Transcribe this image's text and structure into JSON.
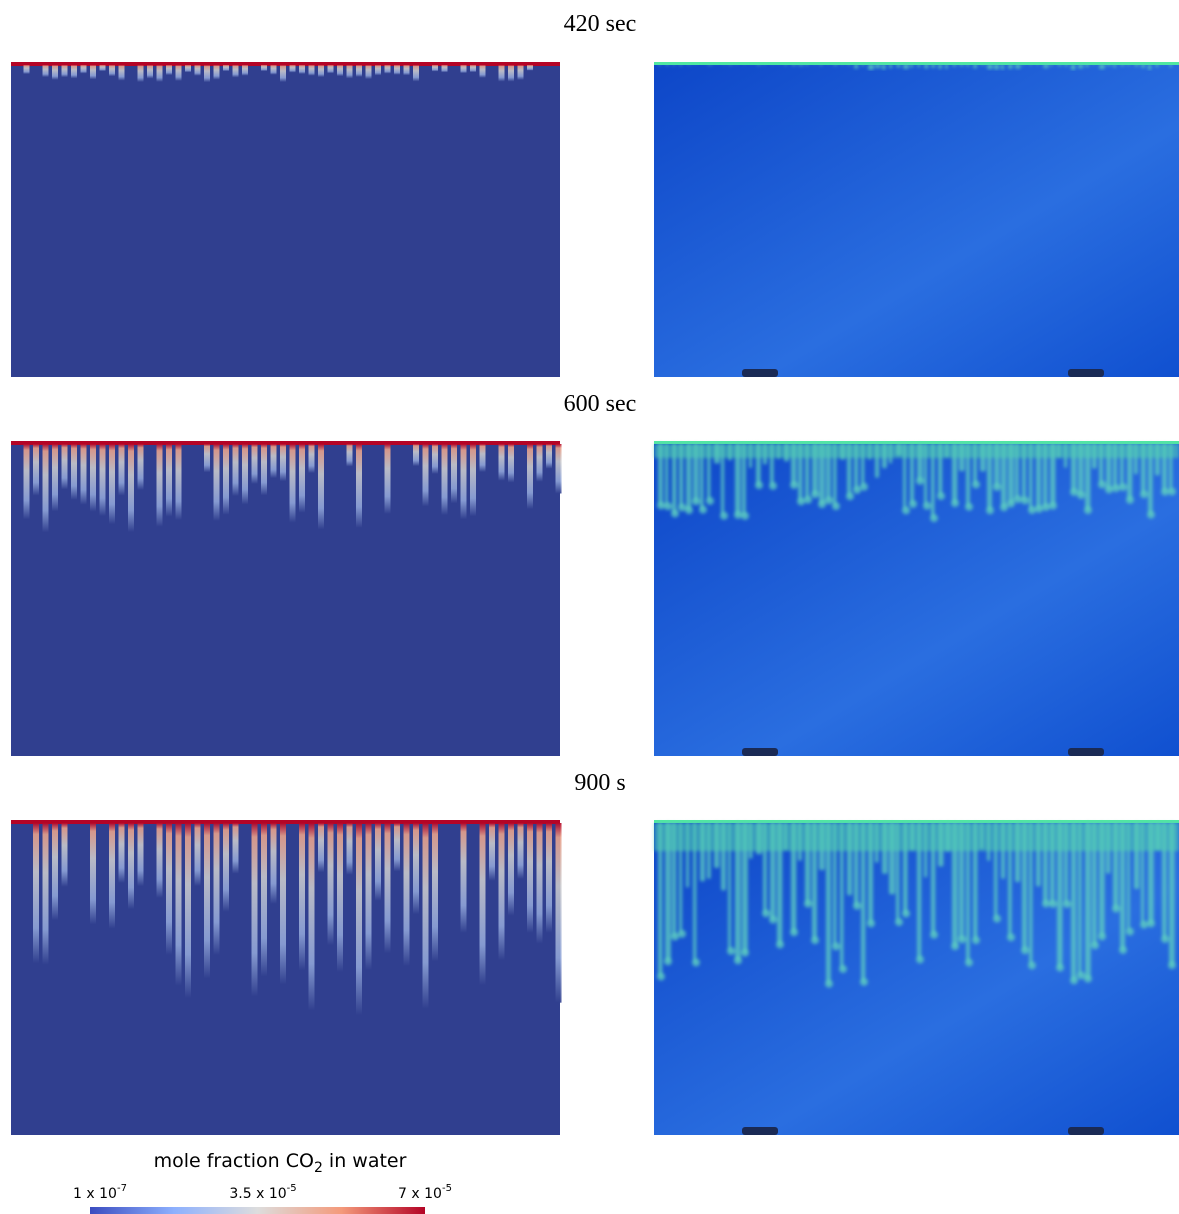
{
  "panels": [
    {
      "title": "420 sec"
    },
    {
      "title": "600 sec"
    },
    {
      "title": "900 s"
    }
  ],
  "colorbar": {
    "label": {
      "before": "mole fraction CO",
      "subscript": "2",
      "after": " in water"
    },
    "ticks": [
      {
        "mantissa": "1 x 10",
        "exponent": "-7"
      },
      {
        "mantissa": "3.5 x 10",
        "exponent": "-5"
      },
      {
        "mantissa": "7 x 10",
        "exponent": "-5"
      }
    ]
  }
}
